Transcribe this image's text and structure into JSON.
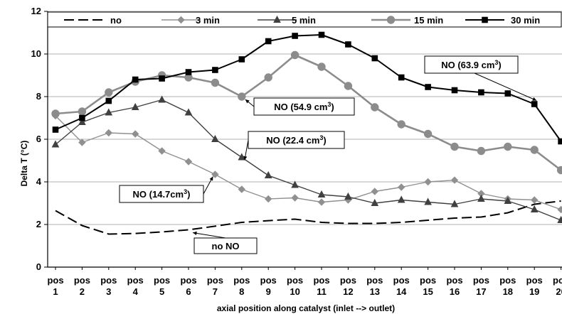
{
  "chart_data": {
    "type": "line",
    "title": "",
    "xlabel": "axial position along catalyst (inlet --> outlet)",
    "ylabel": "Delta T (°C)",
    "ylim": [
      0,
      12
    ],
    "yticks": [
      0,
      2,
      4,
      6,
      8,
      10,
      12
    ],
    "grid": "horizontal",
    "legend_position": "top",
    "categories": [
      {
        "top": "pos",
        "bottom": "1"
      },
      {
        "top": "pos",
        "bottom": "2"
      },
      {
        "top": "pos",
        "bottom": "3"
      },
      {
        "top": "pos",
        "bottom": "4"
      },
      {
        "top": "pos",
        "bottom": "5"
      },
      {
        "top": "pos",
        "bottom": "6"
      },
      {
        "top": "pos",
        "bottom": "7"
      },
      {
        "top": "pos",
        "bottom": "8"
      },
      {
        "top": "pos",
        "bottom": "9"
      },
      {
        "top": "pos",
        "bottom": "10"
      },
      {
        "top": "pos",
        "bottom": "11"
      },
      {
        "top": "pos",
        "bottom": "12"
      },
      {
        "top": "pos",
        "bottom": "13"
      },
      {
        "top": "pos",
        "bottom": "14"
      },
      {
        "top": "pos",
        "bottom": "15"
      },
      {
        "top": "pos",
        "bottom": "16"
      },
      {
        "top": "pos",
        "bottom": "17"
      },
      {
        "top": "pos",
        "bottom": "18"
      },
      {
        "top": "pos",
        "bottom": "19"
      },
      {
        "top": "pos",
        "bottom": "20"
      }
    ],
    "series": [
      {
        "name": "no",
        "color": "#000000",
        "dash": true,
        "marker": "none",
        "values": [
          2.65,
          1.95,
          1.55,
          1.58,
          1.65,
          1.75,
          1.92,
          2.1,
          2.18,
          2.25,
          2.1,
          2.05,
          2.05,
          2.1,
          2.2,
          2.3,
          2.35,
          2.55,
          2.95,
          3.1
        ]
      },
      {
        "name": "3 min",
        "color": "#909090",
        "marker": "diamond",
        "values": [
          7.1,
          5.85,
          6.3,
          6.25,
          5.45,
          4.95,
          4.35,
          3.65,
          3.2,
          3.25,
          3.05,
          3.15,
          3.55,
          3.75,
          4.0,
          4.08,
          3.45,
          3.2,
          3.15,
          2.7
        ]
      },
      {
        "name": "5 min",
        "color": "#404040",
        "marker": "triangle",
        "values": [
          5.75,
          6.8,
          7.25,
          7.5,
          7.85,
          7.25,
          6.0,
          5.15,
          4.3,
          3.85,
          3.4,
          3.3,
          3.0,
          3.15,
          3.05,
          2.95,
          3.2,
          3.1,
          2.7,
          2.2
        ]
      },
      {
        "name": "15 min",
        "color": "#8c8c8c",
        "marker": "circle",
        "values": [
          7.2,
          7.3,
          8.2,
          8.7,
          9.0,
          8.9,
          8.65,
          8.0,
          8.9,
          9.95,
          9.4,
          8.5,
          7.5,
          6.7,
          6.25,
          5.65,
          5.45,
          5.65,
          5.5,
          4.55
        ]
      },
      {
        "name": "30 min",
        "color": "#000000",
        "marker": "square",
        "values": [
          6.45,
          7.0,
          7.8,
          8.8,
          8.85,
          9.15,
          9.25,
          9.75,
          10.6,
          10.85,
          10.9,
          10.45,
          9.8,
          8.9,
          8.45,
          8.3,
          8.2,
          8.15,
          7.65,
          5.9
        ]
      }
    ],
    "annotations": [
      {
        "label": "NO (63.9 cm",
        "sup": "3",
        "suffix": ")",
        "target": {
          "series": 4,
          "index": 18
        }
      },
      {
        "label": "NO (54.9 cm",
        "sup": "3",
        "suffix": ")",
        "target": {
          "series": 3,
          "index": 7
        }
      },
      {
        "label": "NO (22.4 cm",
        "sup": "3",
        "suffix": ")",
        "target": {
          "series": 2,
          "index": 7
        }
      },
      {
        "label": "NO (14.7cm",
        "sup": "3",
        "suffix": ")",
        "target": {
          "series": 1,
          "index": 6
        }
      },
      {
        "label": "no NO",
        "sup": "",
        "suffix": "",
        "target": {
          "series": 0,
          "index": 6
        }
      }
    ]
  }
}
